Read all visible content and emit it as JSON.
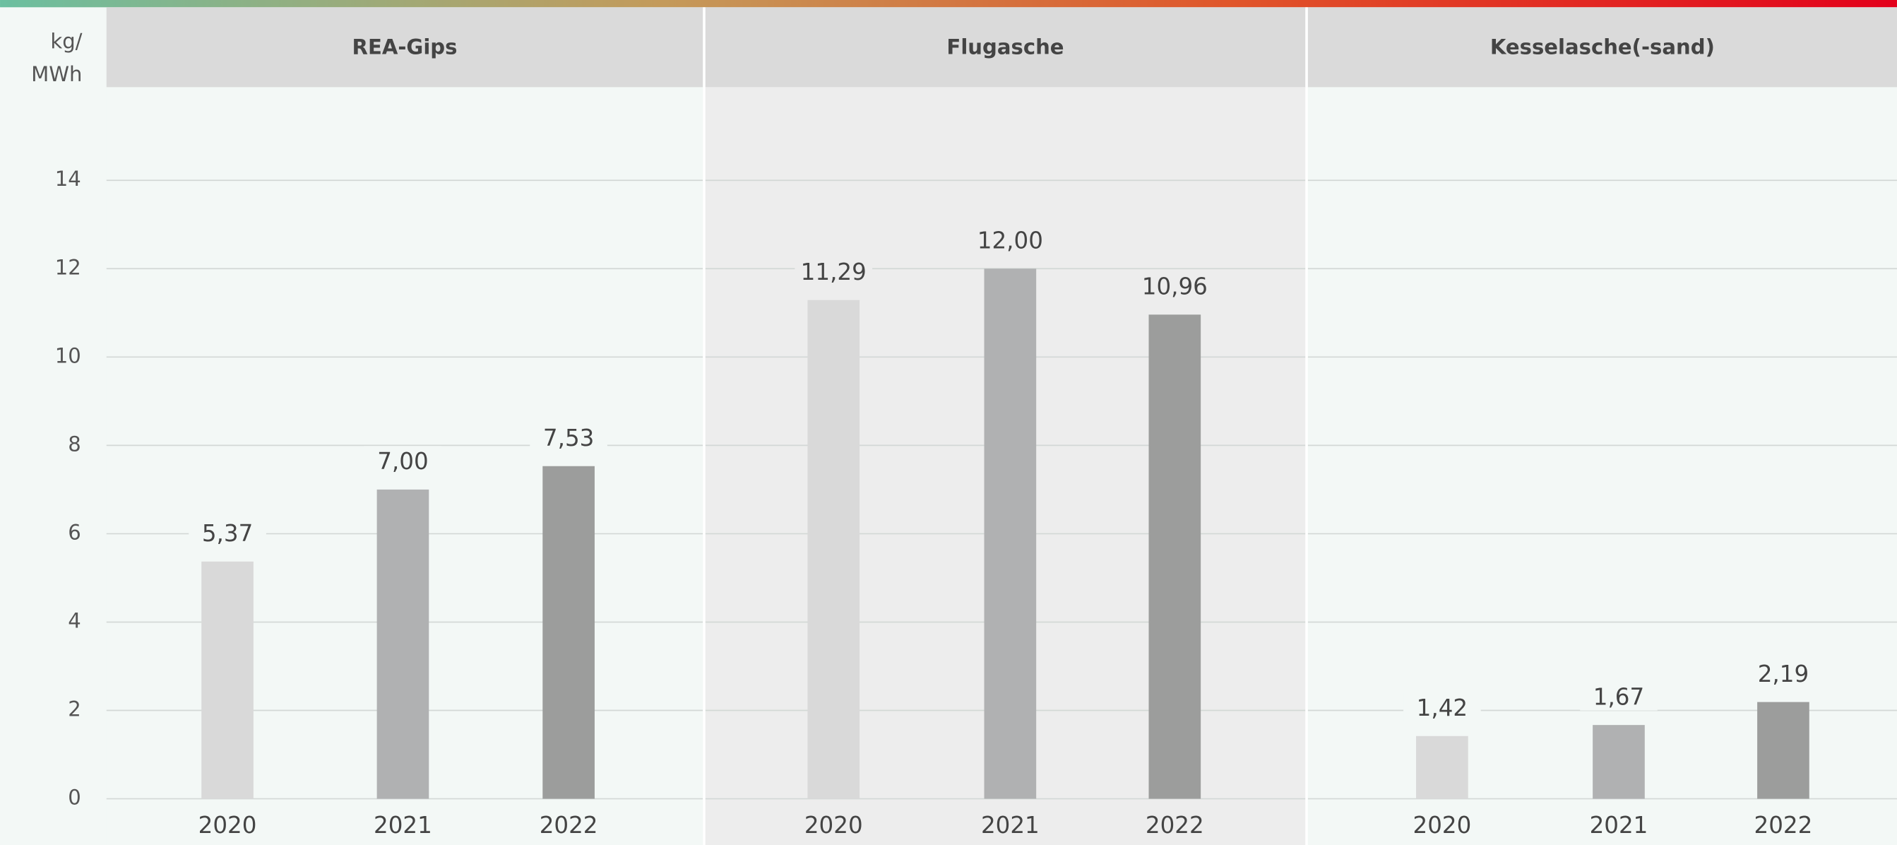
{
  "chart_data": [
    {
      "type": "bar",
      "title": "REA-Gips",
      "y_label": "kg/ MWh",
      "categories": [
        "2020",
        "2021",
        "2022"
      ],
      "values": [
        5.37,
        7.0,
        7.53
      ],
      "value_labels": [
        "5,37",
        "7,00",
        "7,53"
      ],
      "colors": [
        "#d9d9d9",
        "#b0b1b2",
        "#9c9d9c"
      ],
      "ylim": [
        0,
        16
      ],
      "yticks": [
        0,
        2,
        4,
        6,
        8,
        10,
        12,
        14
      ],
      "grid": true
    },
    {
      "type": "bar",
      "title": "Flugasche",
      "categories": [
        "2020",
        "2021",
        "2022"
      ],
      "values": [
        11.29,
        12.0,
        10.96
      ],
      "value_labels": [
        "11,29",
        "12,00",
        "10,96"
      ],
      "colors": [
        "#d9d9d9",
        "#b0b1b2",
        "#9c9d9c"
      ],
      "ylim": [
        0,
        16
      ],
      "yticks": [
        0,
        2,
        4,
        6,
        8,
        10,
        12,
        14
      ],
      "grid": true
    },
    {
      "type": "bar",
      "title": "Kesselasche(-sand)",
      "categories": [
        "2020",
        "2021",
        "2022"
      ],
      "values": [
        1.42,
        1.67,
        2.19
      ],
      "value_labels": [
        "1,42",
        "1,67",
        "2,19"
      ],
      "colors": [
        "#d9d9d9",
        "#b0b1b2",
        "#9c9d9c"
      ],
      "ylim": [
        0,
        16
      ],
      "yticks": [
        0,
        2,
        4,
        6,
        8,
        10,
        12,
        14
      ],
      "grid": true
    }
  ]
}
